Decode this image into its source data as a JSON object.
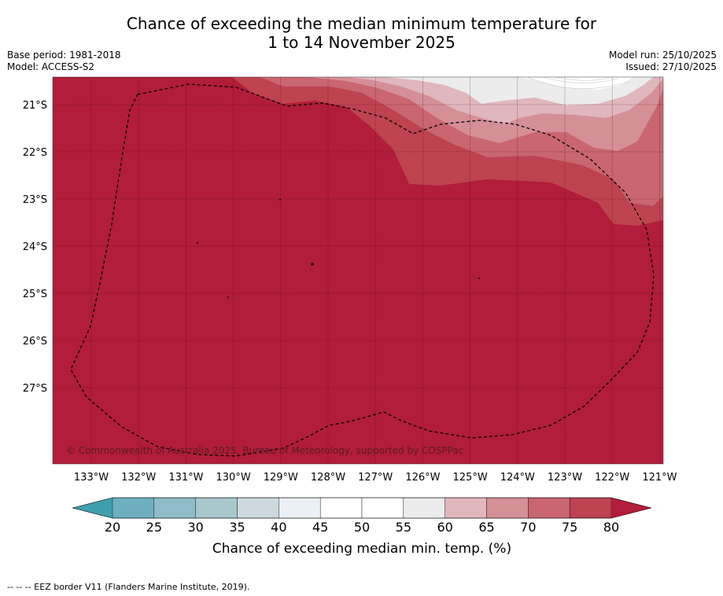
{
  "title": {
    "line1": "Chance of exceeding the median minimum temperature for",
    "line2": "1 to 14 November 2025"
  },
  "meta": {
    "base_period": "Base period: 1981-2018",
    "model": "Model: ACCESS-S2",
    "model_run": "Model run: 25/10/2025",
    "issued": "Issued: 27/10/2025"
  },
  "map": {
    "copyright": "© Commonwealth of Australia 2025, Bureau of Meteorology, supported by COSPPac",
    "lon_labels": [
      "133°W",
      "132°W",
      "131°W",
      "130°W",
      "129°W",
      "128°W",
      "127°W",
      "126°W",
      "125°W",
      "124°W",
      "123°W",
      "122°W",
      "121°W"
    ],
    "lat_labels": [
      "21°S",
      "22°S",
      "23°S",
      "24°S",
      "25°S",
      "26°S",
      "27°S"
    ]
  },
  "colorbar": {
    "label": "Chance of exceeding median min. temp. (%)",
    "ticks": [
      "20",
      "25",
      "30",
      "35",
      "40",
      "45",
      "50",
      "55",
      "60",
      "65",
      "70",
      "75",
      "80"
    ],
    "colors": [
      "#6fb0c0",
      "#8fbcc8",
      "#a9c8ce",
      "#cdd9df",
      "#eaf0f3",
      "#ffffff",
      "#ffffff",
      "#ececec",
      "#e0b7bd",
      "#d58f97",
      "#c9666f",
      "#bd4350"
    ],
    "under_color": "#3f9fae",
    "over_color": "#b11d3a"
  },
  "legend": {
    "eez_note": "--  --  -- EEZ border V11 (Flanders Marine Institute, 2019)."
  }
}
